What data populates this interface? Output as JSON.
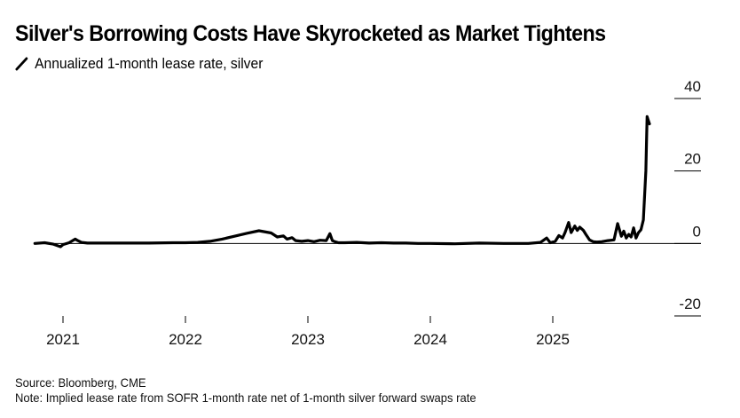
{
  "header": {
    "title": "Silver's Borrowing Costs Have Skyrocketed as Market Tightens",
    "legend_icon": "line-swatch-icon",
    "legend_label": "Annualized 1-month lease rate, silver"
  },
  "footer": {
    "source": "Source: Bloomberg, CME",
    "note": "Note: Implied lease rate from SOFR 1-month rate net of 1-month silver forward swaps rate"
  },
  "colors": {
    "line": "#000000",
    "zero_line": "#000000",
    "gridtick": "#000000"
  },
  "chart_data": {
    "type": "line",
    "title": "Silver's Borrowing Costs Have Skyrocketed as Market Tightens",
    "subtitle": "Annualized 1-month lease rate, silver",
    "xlabel": "",
    "ylabel": "",
    "y_axis_position": "right",
    "ylim": [
      -20,
      40
    ],
    "yticks": [
      40,
      20,
      0,
      -20
    ],
    "ytick_labels": [
      "40",
      "20",
      "0",
      "-20"
    ],
    "xlim": [
      2020.75,
      2025.95
    ],
    "xticks": [
      2021,
      2022,
      2023,
      2024,
      2025
    ],
    "xtick_labels": [
      "2021",
      "2022",
      "2023",
      "2024",
      "2025"
    ],
    "grid": false,
    "legend": "top-left",
    "series": [
      {
        "name": "Annualized 1-month lease rate, silver",
        "x": [
          2020.77,
          2020.85,
          2020.92,
          2020.98,
          2021.0,
          2021.05,
          2021.1,
          2021.12,
          2021.15,
          2021.2,
          2021.3,
          2021.5,
          2021.7,
          2021.9,
          2022.0,
          2022.1,
          2022.2,
          2022.3,
          2022.4,
          2022.5,
          2022.6,
          2022.7,
          2022.75,
          2022.8,
          2022.83,
          2022.87,
          2022.9,
          2022.95,
          2023.0,
          2023.05,
          2023.1,
          2023.15,
          2023.18,
          2023.2,
          2023.22,
          2023.25,
          2023.3,
          2023.4,
          2023.5,
          2023.6,
          2023.7,
          2023.8,
          2023.9,
          2024.0,
          2024.2,
          2024.4,
          2024.6,
          2024.8,
          2024.9,
          2024.95,
          2024.98,
          2025.02,
          2025.05,
          2025.08,
          2025.1,
          2025.13,
          2025.15,
          2025.18,
          2025.2,
          2025.22,
          2025.25,
          2025.27,
          2025.3,
          2025.33,
          2025.36,
          2025.4,
          2025.45,
          2025.5,
          2025.53,
          2025.56,
          2025.58,
          2025.6,
          2025.62,
          2025.64,
          2025.66,
          2025.68,
          2025.7,
          2025.72,
          2025.74,
          2025.76,
          2025.77,
          2025.78,
          2025.79
        ],
        "values": [
          0.0,
          0.2,
          -0.2,
          -0.9,
          -0.3,
          0.2,
          1.2,
          0.8,
          0.3,
          0.1,
          0.1,
          0.1,
          0.1,
          0.2,
          0.2,
          0.3,
          0.6,
          1.2,
          2.0,
          2.8,
          3.5,
          2.9,
          1.8,
          2.1,
          1.2,
          1.6,
          0.8,
          0.6,
          0.8,
          0.5,
          0.9,
          0.8,
          2.7,
          0.8,
          0.5,
          0.2,
          0.2,
          0.3,
          0.1,
          0.2,
          0.1,
          0.1,
          0.0,
          0.0,
          -0.1,
          0.1,
          0.0,
          0.0,
          0.3,
          1.5,
          0.2,
          0.6,
          2.2,
          1.5,
          3.0,
          5.8,
          3.0,
          4.8,
          3.6,
          4.5,
          3.6,
          2.5,
          1.0,
          0.5,
          0.4,
          0.5,
          0.8,
          1.0,
          5.5,
          2.0,
          3.4,
          1.5,
          2.5,
          1.8,
          4.3,
          1.5,
          3.0,
          3.8,
          6.5,
          20.0,
          35.0,
          34.0,
          33.0
        ]
      }
    ]
  }
}
